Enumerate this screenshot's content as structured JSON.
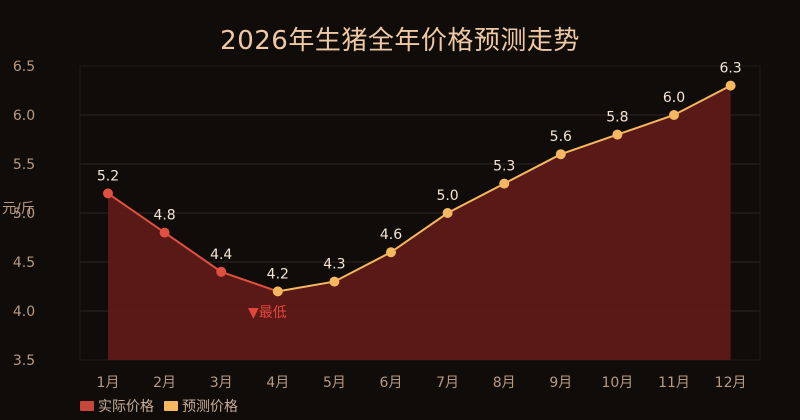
{
  "title": "2026年生猪全年价格预测走势",
  "chart_data": {
    "type": "area",
    "title": "2026年生猪全年价格预测走势",
    "ylabel": "元/斤",
    "xlabel": "",
    "categories": [
      "1月",
      "2月",
      "3月",
      "4月",
      "5月",
      "6月",
      "7月",
      "8月",
      "9月",
      "10月",
      "11月",
      "12月"
    ],
    "values": [
      5.2,
      4.8,
      4.4,
      4.2,
      4.3,
      4.6,
      5.0,
      5.3,
      5.6,
      5.8,
      6.0,
      6.3
    ],
    "series": [
      {
        "name": "实际价格",
        "color": "#e05040",
        "range": [
          0,
          3
        ]
      },
      {
        "name": "预测价格",
        "color": "#f5b860",
        "range": [
          3,
          11
        ]
      }
    ],
    "ylim": [
      3.5,
      6.5
    ],
    "yticks": [
      "3.5",
      "4.0",
      "4.5",
      "5.0",
      "5.5",
      "6.0",
      "6.5"
    ],
    "annotation": {
      "text": "▼最低",
      "index": 3
    },
    "grid": true,
    "legend": "bottom-left",
    "colors": {
      "fill": "#5e1a18",
      "actual": "#e05040",
      "forecast": "#f5b860",
      "grid": "#2c2522"
    }
  }
}
